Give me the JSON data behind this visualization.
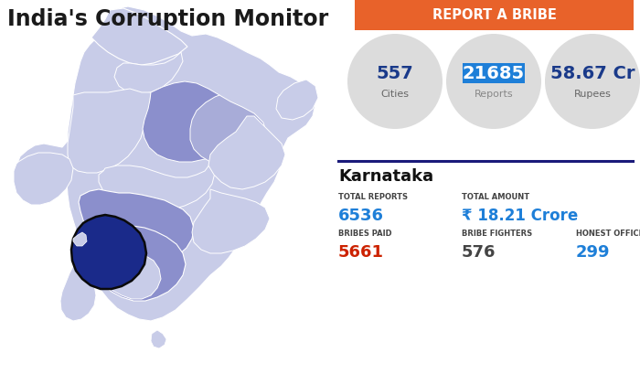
{
  "title": "India's Corruption Monitor",
  "report_btn_text": "REPORT A BRIBE",
  "report_btn_color": "#E8622A",
  "report_btn_text_color": "#FFFFFF",
  "stat1_value": "557",
  "stat1_label": "Cities",
  "stat2_value": "21685",
  "stat2_label": "Reports",
  "stat3_value": "58.67 Cr",
  "stat3_label": "Rupees",
  "highlight_text_bg": "#1E7FD8",
  "normal_circle_color": "#DCDCDC",
  "state_name": "Karnataka",
  "divider_color": "#1a1a7a",
  "label_color": "#444444",
  "field1_label": "TOTAL REPORTS",
  "field1_value": "6536",
  "field1_value_color": "#1E7FD8",
  "field2_label": "TOTAL AMOUNT",
  "field2_value": "₹ 18.21 Crore",
  "field2_value_color": "#1E7FD8",
  "field3_label": "BRIBES PAID",
  "field3_value": "5661",
  "field3_value_color": "#CC2200",
  "field4_label": "BRIBE FIGHTERS",
  "field4_value": "576",
  "field4_value_color": "#444444",
  "field5_label": "HONEST OFFICERS",
  "field5_value": "299",
  "field5_value_color": "#1E7FD8",
  "bg_color": "#FFFFFF",
  "title_color": "#1a1a1a",
  "stat_value_color": "#1a3a8a",
  "stat_label_color": "#666666",
  "map_light_color": "#C8CCE8",
  "map_medium_color": "#8B8FCC",
  "map_dark_color": "#1a2a8a",
  "map_south_medium": "#9A9FD8"
}
